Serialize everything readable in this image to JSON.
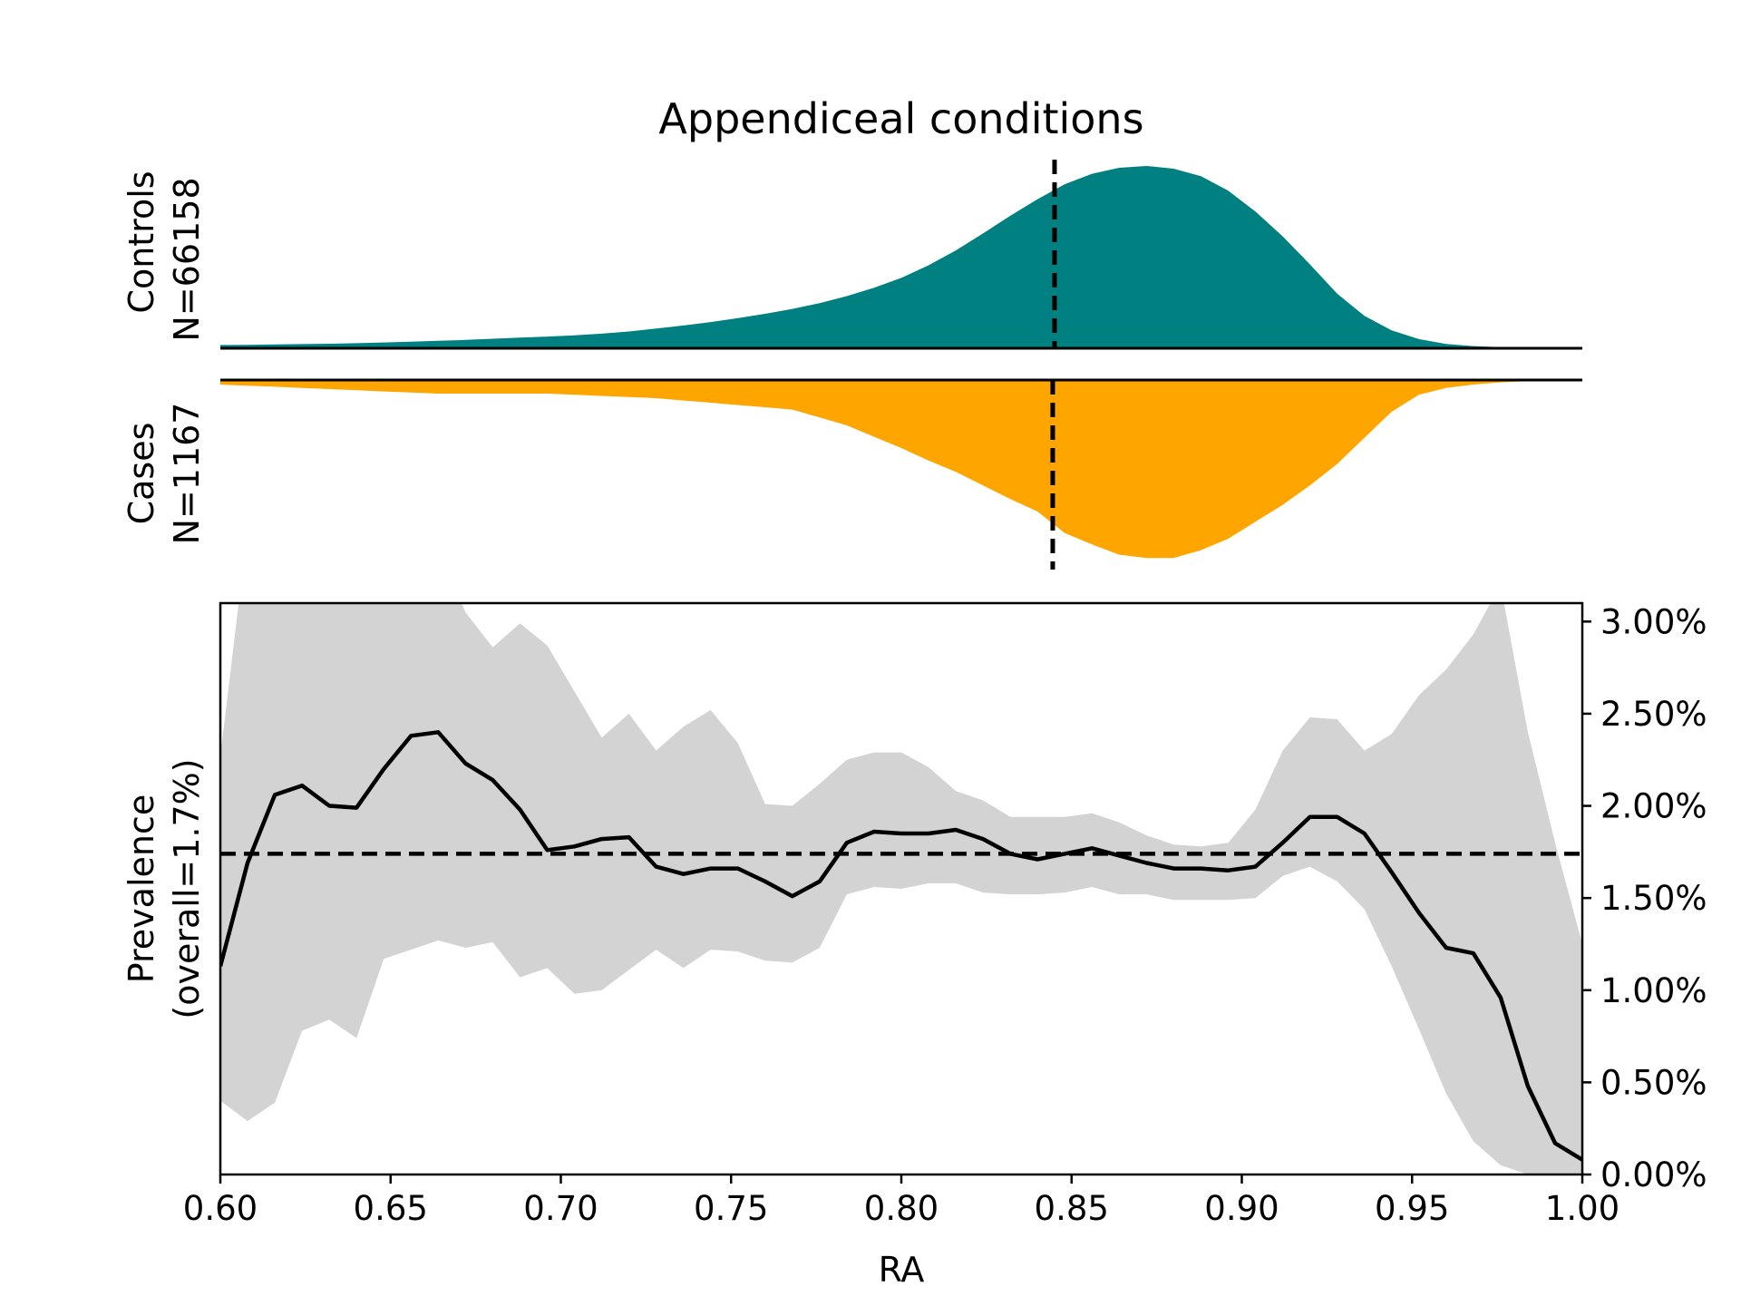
{
  "chart_data": {
    "title": "Appendiceal conditions",
    "colors": {
      "controls_fill": "#008080",
      "cases_fill": "#FFA500",
      "ci_band": "#D3D3D3",
      "line": "#000000"
    },
    "density_panels": {
      "type": "area",
      "x": [
        0.6,
        0.608,
        0.616,
        0.624,
        0.632,
        0.64,
        0.648,
        0.656,
        0.664,
        0.672,
        0.68,
        0.688,
        0.696,
        0.704,
        0.712,
        0.72,
        0.728,
        0.736,
        0.744,
        0.752,
        0.76,
        0.768,
        0.776,
        0.784,
        0.792,
        0.8,
        0.808,
        0.816,
        0.824,
        0.832,
        0.84,
        0.848,
        0.856,
        0.864,
        0.872,
        0.88,
        0.888,
        0.896,
        0.904,
        0.912,
        0.92,
        0.928,
        0.936,
        0.944,
        0.952,
        0.96,
        0.968,
        0.976,
        0.984,
        0.992,
        1.0
      ],
      "xlim": [
        0.6,
        1.0
      ],
      "vline_x": 0.845,
      "controls": {
        "label_line1": "Controls",
        "label_line2": "N=66158",
        "density": [
          0.018,
          0.019,
          0.021,
          0.023,
          0.025,
          0.028,
          0.032,
          0.036,
          0.041,
          0.046,
          0.052,
          0.058,
          0.064,
          0.071,
          0.08,
          0.092,
          0.108,
          0.125,
          0.144,
          0.165,
          0.189,
          0.216,
          0.248,
          0.286,
          0.332,
          0.386,
          0.455,
          0.537,
          0.63,
          0.727,
          0.818,
          0.9,
          0.957,
          0.99,
          1.0,
          0.985,
          0.944,
          0.864,
          0.75,
          0.614,
          0.46,
          0.3,
          0.178,
          0.098,
          0.05,
          0.024,
          0.012,
          0.006,
          0.003,
          0.001,
          0.0
        ]
      },
      "cases": {
        "label_line1": "Cases",
        "label_line2": "N=1167",
        "density": [
          0.025,
          0.031,
          0.037,
          0.044,
          0.05,
          0.056,
          0.063,
          0.069,
          0.075,
          0.075,
          0.075,
          0.075,
          0.075,
          0.081,
          0.088,
          0.094,
          0.1,
          0.113,
          0.125,
          0.138,
          0.15,
          0.163,
          0.206,
          0.25,
          0.313,
          0.375,
          0.444,
          0.506,
          0.581,
          0.656,
          0.725,
          0.844,
          0.906,
          0.963,
          0.981,
          0.981,
          0.938,
          0.875,
          0.781,
          0.688,
          0.581,
          0.463,
          0.319,
          0.175,
          0.081,
          0.044,
          0.025,
          0.013,
          0.006,
          0.003,
          0.0
        ]
      }
    },
    "prevalence": {
      "type": "line",
      "x": [
        0.6,
        0.608,
        0.616,
        0.624,
        0.632,
        0.64,
        0.648,
        0.656,
        0.664,
        0.672,
        0.68,
        0.688,
        0.696,
        0.704,
        0.712,
        0.72,
        0.728,
        0.736,
        0.744,
        0.752,
        0.76,
        0.768,
        0.776,
        0.784,
        0.792,
        0.8,
        0.808,
        0.816,
        0.824,
        0.832,
        0.84,
        0.848,
        0.856,
        0.864,
        0.872,
        0.88,
        0.888,
        0.896,
        0.904,
        0.912,
        0.92,
        0.928,
        0.936,
        0.944,
        0.952,
        0.96,
        0.968,
        0.976,
        0.984,
        0.992,
        1.0
      ],
      "y": [
        1.13,
        1.69,
        2.06,
        2.11,
        2.0,
        1.99,
        2.2,
        2.38,
        2.4,
        2.23,
        2.14,
        1.98,
        1.76,
        1.78,
        1.82,
        1.83,
        1.67,
        1.63,
        1.66,
        1.66,
        1.59,
        1.51,
        1.59,
        1.8,
        1.86,
        1.85,
        1.85,
        1.87,
        1.82,
        1.74,
        1.71,
        1.74,
        1.77,
        1.73,
        1.69,
        1.66,
        1.66,
        1.65,
        1.67,
        1.8,
        1.94,
        1.94,
        1.85,
        1.64,
        1.42,
        1.23,
        1.2,
        0.96,
        0.48,
        0.17,
        0.08
      ],
      "ci_upper": [
        2.27,
        3.5,
        3.6,
        3.6,
        3.6,
        3.6,
        3.6,
        3.6,
        3.4,
        3.05,
        2.86,
        2.99,
        2.87,
        2.62,
        2.37,
        2.5,
        2.3,
        2.43,
        2.52,
        2.34,
        2.01,
        2.0,
        2.12,
        2.25,
        2.29,
        2.29,
        2.21,
        2.08,
        2.03,
        1.94,
        1.94,
        1.94,
        1.96,
        1.91,
        1.84,
        1.79,
        1.78,
        1.8,
        1.98,
        2.3,
        2.48,
        2.47,
        2.3,
        2.39,
        2.6,
        2.74,
        2.93,
        3.2,
        2.4,
        1.8,
        1.25
      ],
      "ci_lower": [
        0.4,
        0.29,
        0.39,
        0.78,
        0.84,
        0.74,
        1.17,
        1.22,
        1.27,
        1.23,
        1.26,
        1.07,
        1.12,
        0.98,
        1.0,
        1.11,
        1.22,
        1.12,
        1.22,
        1.21,
        1.16,
        1.15,
        1.23,
        1.52,
        1.56,
        1.55,
        1.58,
        1.58,
        1.53,
        1.52,
        1.52,
        1.53,
        1.56,
        1.52,
        1.52,
        1.49,
        1.49,
        1.49,
        1.5,
        1.62,
        1.67,
        1.59,
        1.44,
        1.13,
        0.79,
        0.44,
        0.18,
        0.05,
        0.0,
        0.0,
        0.0
      ],
      "overall": 1.74,
      "ylim": [
        0.0,
        3.1
      ],
      "yticks": [
        0.0,
        0.5,
        1.0,
        1.5,
        2.0,
        2.5,
        3.0
      ],
      "ytick_labels": [
        "0.00%",
        "0.50%",
        "1.00%",
        "1.50%",
        "2.00%",
        "2.50%",
        "3.00%"
      ],
      "xticks": [
        0.6,
        0.65,
        0.7,
        0.75,
        0.8,
        0.85,
        0.9,
        0.95,
        1.0
      ],
      "xtick_labels": [
        "0.60",
        "0.65",
        "0.70",
        "0.75",
        "0.80",
        "0.85",
        "0.90",
        "0.95",
        "1.00"
      ],
      "xlabel": "RA",
      "ylabel_line1": "Prevalence",
      "ylabel_line2": "(overall=1.7%)"
    }
  }
}
